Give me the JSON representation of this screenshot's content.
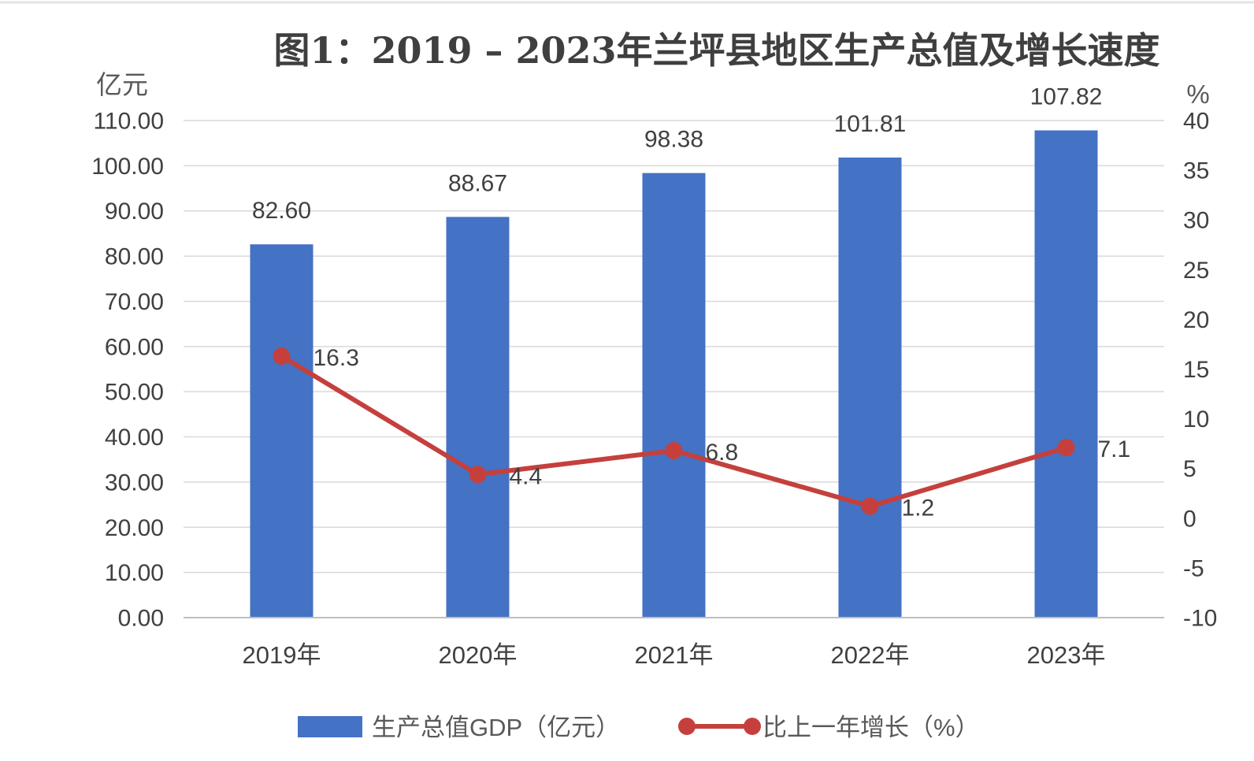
{
  "chart_data": {
    "type": "bar",
    "title": "图1：2019 – 2023年兰坪县地区生产总值及增长速度",
    "categories": [
      "2019年",
      "2020年",
      "2021年",
      "2022年",
      "2023年"
    ],
    "series": [
      {
        "name": "生产总值GDP（亿元）",
        "type": "bar",
        "axis": "left",
        "values": [
          82.6,
          88.67,
          98.38,
          101.81,
          107.82
        ],
        "labels": [
          "82.60",
          "88.67",
          "98.38",
          "101.81",
          "107.82"
        ],
        "color": "#4472C4"
      },
      {
        "name": "比上一年增长（%）",
        "type": "line",
        "axis": "right",
        "values": [
          16.3,
          4.4,
          6.8,
          1.2,
          7.1
        ],
        "labels": [
          "16.3",
          "4.4",
          "6.8",
          "1.2",
          "7.1"
        ],
        "color": "#C5403D"
      }
    ],
    "y_left": {
      "unit": "亿元",
      "range": [
        0,
        110
      ],
      "ticks": [
        "0.00",
        "10.00",
        "20.00",
        "30.00",
        "40.00",
        "50.00",
        "60.00",
        "70.00",
        "80.00",
        "90.00",
        "100.00",
        "110.00"
      ]
    },
    "y_right": {
      "unit": "%",
      "range": [
        -10,
        40
      ],
      "ticks": [
        "-10",
        "-5",
        "0",
        "5",
        "10",
        "15",
        "20",
        "25",
        "30",
        "35",
        "40"
      ]
    },
    "grid": true,
    "legend_position": "bottom"
  }
}
